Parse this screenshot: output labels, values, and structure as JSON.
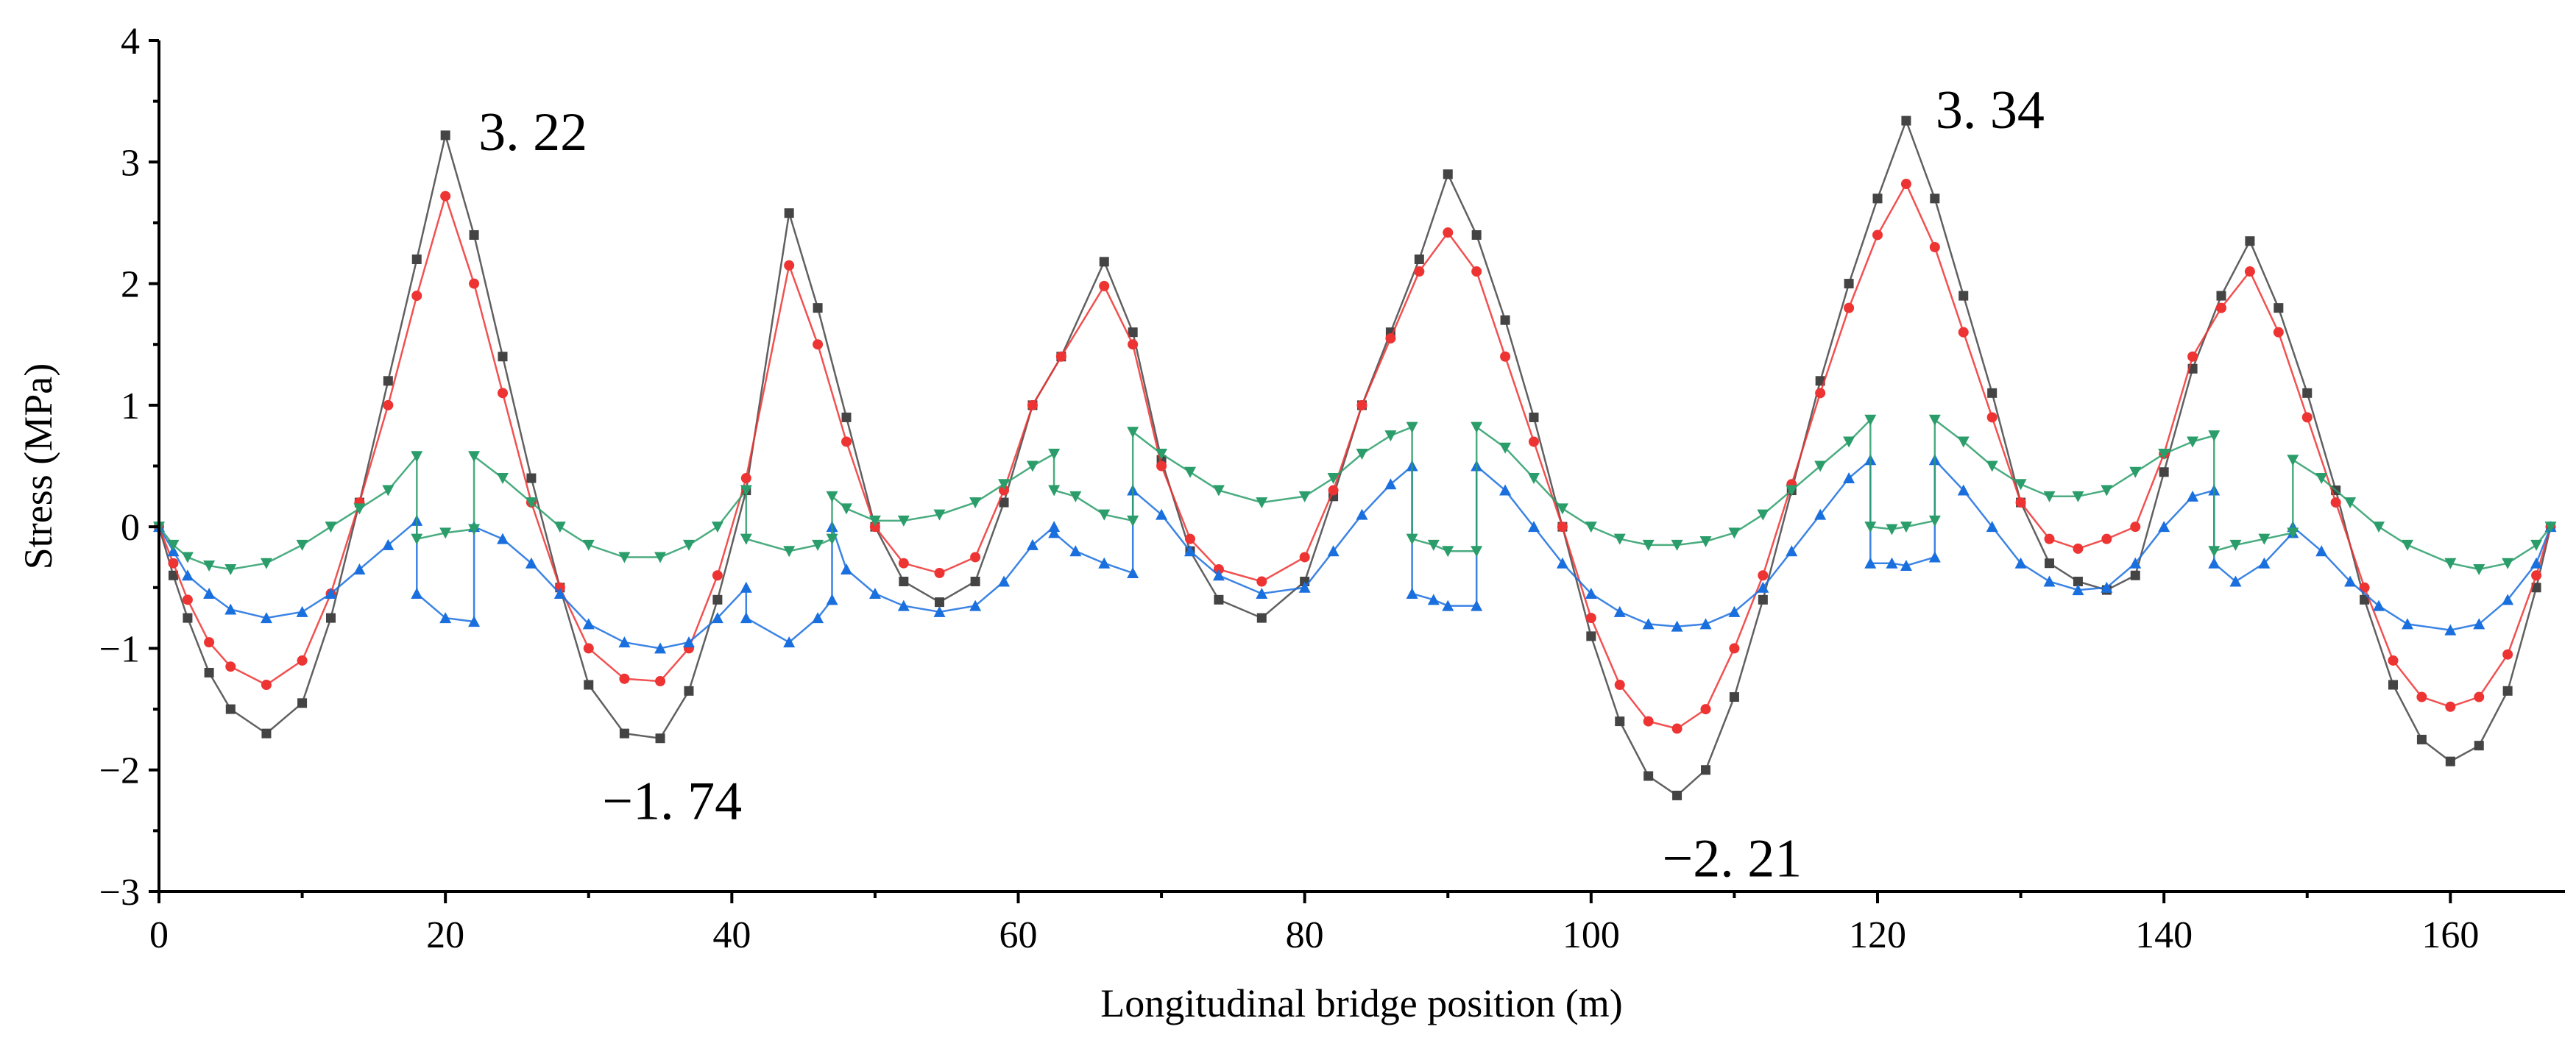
{
  "chart_data": {
    "type": "line",
    "title": "",
    "xlabel": "Longitudinal bridge position (m)",
    "ylabel": "Stress (MPa)",
    "xlim": [
      0,
      168
    ],
    "ylim": [
      -3,
      4
    ],
    "xticks": [
      0,
      20,
      40,
      60,
      80,
      100,
      120,
      140,
      160
    ],
    "yticks": [
      -3,
      -2,
      -1,
      0,
      1,
      2,
      3,
      4
    ],
    "xtick_labels": [
      "0",
      "20",
      "40",
      "60",
      "80",
      "100",
      "120",
      "140",
      "160"
    ],
    "ytick_labels": [
      "−3",
      "−2",
      "−1",
      "0",
      "1",
      "2",
      "3",
      "4"
    ],
    "grid": false,
    "legend": "none",
    "series": [
      {
        "name": "dark-gray-squares",
        "color": "#444444",
        "marker": "square",
        "x": [
          0,
          1,
          2,
          3.5,
          5,
          7.5,
          10,
          12,
          14,
          16,
          18,
          20,
          22,
          24,
          26,
          28,
          30,
          32.5,
          35,
          37,
          39,
          41,
          44,
          46,
          48,
          50,
          52,
          54.5,
          57,
          59,
          61,
          63,
          66,
          68,
          70,
          72,
          74,
          77,
          80,
          82,
          84,
          86,
          88,
          90,
          92,
          94,
          96,
          98,
          100,
          102,
          104,
          106,
          108,
          110,
          112,
          114,
          116,
          118,
          120,
          122,
          124,
          126,
          128,
          130,
          132,
          134,
          136,
          138,
          140,
          142,
          144,
          146,
          148,
          150,
          152,
          154,
          156,
          158,
          160,
          162,
          164,
          166,
          167
        ],
        "y": [
          0,
          -0.4,
          -0.75,
          -1.2,
          -1.5,
          -1.7,
          -1.45,
          -0.75,
          0.2,
          1.2,
          2.2,
          3.22,
          2.4,
          1.4,
          0.4,
          -0.5,
          -1.3,
          -1.7,
          -1.74,
          -1.35,
          -0.6,
          0.3,
          2.58,
          1.8,
          0.9,
          0.0,
          -0.45,
          -0.62,
          -0.45,
          0.2,
          1.0,
          1.4,
          2.18,
          1.6,
          0.55,
          -0.2,
          -0.6,
          -0.75,
          -0.45,
          0.25,
          1.0,
          1.6,
          2.2,
          2.9,
          2.4,
          1.7,
          0.9,
          0.0,
          -0.9,
          -1.6,
          -2.05,
          -2.21,
          -2.0,
          -1.4,
          -0.6,
          0.3,
          1.2,
          2.0,
          2.7,
          3.34,
          2.7,
          1.9,
          1.1,
          0.2,
          -0.3,
          -0.45,
          -0.52,
          -0.4,
          0.45,
          1.3,
          1.9,
          2.35,
          1.8,
          1.1,
          0.3,
          -0.6,
          -1.3,
          -1.75,
          -1.93,
          -1.8,
          -1.35,
          -0.5,
          0
        ]
      },
      {
        "name": "red-circles",
        "color": "#ee3333",
        "marker": "circle",
        "x": [
          0,
          1,
          2,
          3.5,
          5,
          7.5,
          10,
          12,
          14,
          16,
          18,
          20,
          22,
          24,
          26,
          28,
          30,
          32.5,
          35,
          37,
          39,
          41,
          44,
          46,
          48,
          50,
          52,
          54.5,
          57,
          59,
          61,
          63,
          66,
          68,
          70,
          72,
          74,
          77,
          80,
          82,
          84,
          86,
          88,
          90,
          92,
          94,
          96,
          98,
          100,
          102,
          104,
          106,
          108,
          110,
          112,
          114,
          116,
          118,
          120,
          122,
          124,
          126,
          128,
          130,
          132,
          134,
          136,
          138,
          140,
          142,
          144,
          146,
          148,
          150,
          152,
          154,
          156,
          158,
          160,
          162,
          164,
          166,
          167
        ],
        "y": [
          0,
          -0.3,
          -0.6,
          -0.95,
          -1.15,
          -1.3,
          -1.1,
          -0.55,
          0.2,
          1.0,
          1.9,
          2.72,
          2.0,
          1.1,
          0.2,
          -0.5,
          -1.0,
          -1.25,
          -1.27,
          -1.0,
          -0.4,
          0.4,
          2.15,
          1.5,
          0.7,
          0.0,
          -0.3,
          -0.38,
          -0.25,
          0.3,
          1.0,
          1.4,
          1.98,
          1.5,
          0.5,
          -0.1,
          -0.35,
          -0.45,
          -0.25,
          0.3,
          1.0,
          1.55,
          2.1,
          2.42,
          2.1,
          1.4,
          0.7,
          0.0,
          -0.75,
          -1.3,
          -1.6,
          -1.66,
          -1.5,
          -1.0,
          -0.4,
          0.35,
          1.1,
          1.8,
          2.4,
          2.82,
          2.3,
          1.6,
          0.9,
          0.2,
          -0.1,
          -0.18,
          -0.1,
          0.0,
          0.6,
          1.4,
          1.8,
          2.1,
          1.6,
          0.9,
          0.2,
          -0.5,
          -1.1,
          -1.4,
          -1.48,
          -1.4,
          -1.05,
          -0.4,
          0
        ]
      },
      {
        "name": "blue-triangles-up",
        "color": "#1a6fdf",
        "marker": "triangle-up",
        "x": [
          0,
          1,
          2,
          3.5,
          5,
          7.5,
          10,
          12,
          14,
          16,
          18,
          18,
          20,
          22,
          22,
          24,
          26,
          28,
          30,
          32.5,
          35,
          37,
          39,
          41,
          41,
          44,
          46,
          47,
          47,
          48,
          50,
          52,
          54.5,
          57,
          59,
          61,
          62.5,
          62.5,
          64,
          66,
          68,
          68,
          70,
          72,
          74,
          77,
          80,
          82,
          84,
          86,
          87.5,
          87.5,
          89,
          90,
          92,
          92,
          94,
          96,
          98,
          100,
          102,
          104,
          106,
          108,
          110,
          112,
          114,
          116,
          118,
          119.5,
          119.5,
          121,
          122,
          124,
          124,
          126,
          128,
          130,
          132,
          134,
          136,
          138,
          140,
          142,
          143.5,
          143.5,
          145,
          147,
          149,
          149,
          151,
          153,
          155,
          157,
          160,
          162,
          164,
          166,
          167
        ],
        "y": [
          0,
          -0.2,
          -0.4,
          -0.55,
          -0.68,
          -0.75,
          -0.7,
          -0.55,
          -0.35,
          -0.15,
          0.05,
          -0.55,
          -0.75,
          -0.78,
          0.0,
          -0.1,
          -0.3,
          -0.55,
          -0.8,
          -0.95,
          -1.0,
          -0.95,
          -0.75,
          -0.5,
          -0.75,
          -0.95,
          -0.75,
          -0.6,
          0.0,
          -0.35,
          -0.55,
          -0.65,
          -0.7,
          -0.65,
          -0.45,
          -0.15,
          0.0,
          -0.05,
          -0.2,
          -0.3,
          -0.38,
          0.3,
          0.1,
          -0.2,
          -0.4,
          -0.55,
          -0.5,
          -0.2,
          0.1,
          0.35,
          0.5,
          -0.55,
          -0.6,
          -0.65,
          -0.65,
          0.5,
          0.3,
          0.0,
          -0.3,
          -0.55,
          -0.7,
          -0.8,
          -0.82,
          -0.8,
          -0.7,
          -0.5,
          -0.2,
          0.1,
          0.4,
          0.55,
          -0.3,
          -0.3,
          -0.32,
          -0.25,
          0.55,
          0.3,
          0.0,
          -0.3,
          -0.45,
          -0.52,
          -0.5,
          -0.3,
          0.0,
          0.25,
          0.3,
          -0.3,
          -0.45,
          -0.3,
          -0.05,
          0.0,
          -0.2,
          -0.45,
          -0.65,
          -0.8,
          -0.85,
          -0.8,
          -0.6,
          -0.3,
          0
        ]
      },
      {
        "name": "green-triangles-down",
        "color": "#2a9d6a",
        "marker": "triangle-down",
        "x": [
          0,
          1,
          2,
          3.5,
          5,
          7.5,
          10,
          12,
          14,
          16,
          18,
          18,
          20,
          22,
          22,
          24,
          26,
          28,
          30,
          32.5,
          35,
          37,
          39,
          41,
          41,
          44,
          46,
          47,
          47,
          48,
          50,
          52,
          54.5,
          57,
          59,
          61,
          62.5,
          62.5,
          64,
          66,
          68,
          68,
          70,
          72,
          74,
          77,
          80,
          82,
          84,
          86,
          87.5,
          87.5,
          89,
          90,
          92,
          92,
          94,
          96,
          98,
          100,
          102,
          104,
          106,
          108,
          110,
          112,
          114,
          116,
          118,
          119.5,
          119.5,
          121,
          122,
          124,
          124,
          126,
          128,
          130,
          132,
          134,
          136,
          138,
          140,
          142,
          143.5,
          143.5,
          145,
          147,
          149,
          149,
          151,
          153,
          155,
          157,
          160,
          162,
          164,
          166,
          167
        ],
        "y": [
          0,
          -0.15,
          -0.25,
          -0.32,
          -0.35,
          -0.3,
          -0.15,
          0.0,
          0.15,
          0.3,
          0.58,
          -0.1,
          -0.05,
          -0.02,
          0.58,
          0.4,
          0.2,
          0.0,
          -0.15,
          -0.25,
          -0.25,
          -0.15,
          0.0,
          0.3,
          -0.1,
          -0.2,
          -0.15,
          -0.1,
          0.25,
          0.15,
          0.05,
          0.05,
          0.1,
          0.2,
          0.35,
          0.5,
          0.6,
          0.3,
          0.25,
          0.1,
          0.05,
          0.78,
          0.6,
          0.45,
          0.3,
          0.2,
          0.25,
          0.4,
          0.6,
          0.75,
          0.82,
          -0.1,
          -0.15,
          -0.2,
          -0.2,
          0.82,
          0.65,
          0.4,
          0.15,
          0.0,
          -0.1,
          -0.15,
          -0.15,
          -0.12,
          -0.05,
          0.1,
          0.3,
          0.5,
          0.7,
          0.88,
          0.0,
          -0.02,
          0.0,
          0.05,
          0.88,
          0.7,
          0.5,
          0.35,
          0.25,
          0.25,
          0.3,
          0.45,
          0.6,
          0.7,
          0.75,
          -0.2,
          -0.15,
          -0.1,
          -0.05,
          0.55,
          0.4,
          0.2,
          0.0,
          -0.15,
          -0.3,
          -0.35,
          -0.3,
          -0.15,
          0
        ]
      }
    ],
    "annotations": [
      {
        "text": "3. 22",
        "x": 20,
        "y": 3.22
      },
      {
        "text": "−1. 74",
        "x": 32.5,
        "y": -1.74
      },
      {
        "text": "3. 34",
        "x": 122,
        "y": 3.34
      },
      {
        "text": "−2. 21",
        "x": 106,
        "y": -2.21
      }
    ]
  }
}
